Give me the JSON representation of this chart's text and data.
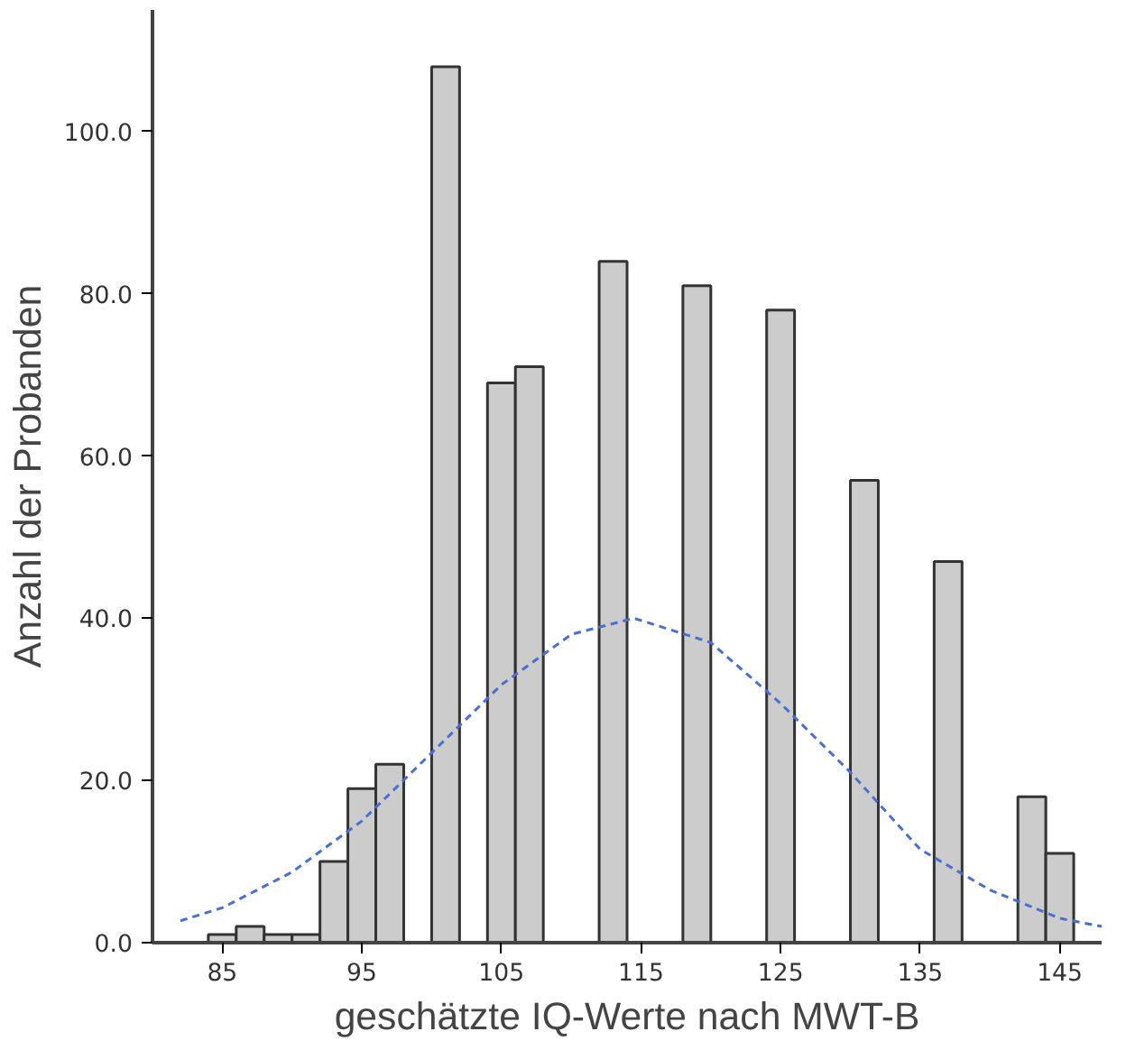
{
  "chart_data": {
    "type": "histogram",
    "xlabel": "geschätzte IQ-Werte nach MWT-B",
    "ylabel": "Anzahl der Probanden",
    "bins": [
      84,
      86,
      88,
      90,
      92,
      94,
      96,
      98,
      100,
      102,
      104,
      106,
      108,
      110,
      112,
      114,
      116,
      118,
      120,
      122,
      124,
      126,
      128,
      130,
      132,
      134,
      136,
      138,
      140,
      142,
      144,
      146
    ],
    "values": [
      1,
      2,
      1,
      1,
      10,
      19,
      22,
      0,
      108,
      0,
      69,
      71,
      0,
      0,
      84,
      0,
      0,
      81,
      0,
      0,
      78,
      0,
      0,
      57,
      0,
      0,
      47,
      0,
      0,
      18,
      11
    ],
    "color": "#cccccc",
    "series": [
      {
        "type": "line",
        "color": "#4a6fd0",
        "line_style": "dashed",
        "x": [
          82,
          85,
          90,
          95,
          100,
          105,
          110,
          114.5,
          120,
          125,
          130,
          135,
          140,
          145,
          148
        ],
        "values": [
          2.7,
          4.3,
          8.7,
          15,
          23.4,
          31.8,
          38,
          40,
          37,
          29.5,
          21,
          11.5,
          6.5,
          3,
          2
        ]
      }
    ],
    "xlim": [
      80,
      148
    ],
    "ylim": [
      0,
      115
    ],
    "xticks": [
      85,
      95,
      105,
      115,
      125,
      135,
      145
    ],
    "yticks": [
      {
        "value": 0,
        "label": "0.0"
      },
      {
        "value": 20,
        "label": "20.0"
      },
      {
        "value": 40,
        "label": "40.0"
      },
      {
        "value": 60,
        "label": "60.0"
      },
      {
        "value": 80,
        "label": "80.0"
      },
      {
        "value": 100,
        "label": "100.0"
      }
    ],
    "grid": false
  }
}
